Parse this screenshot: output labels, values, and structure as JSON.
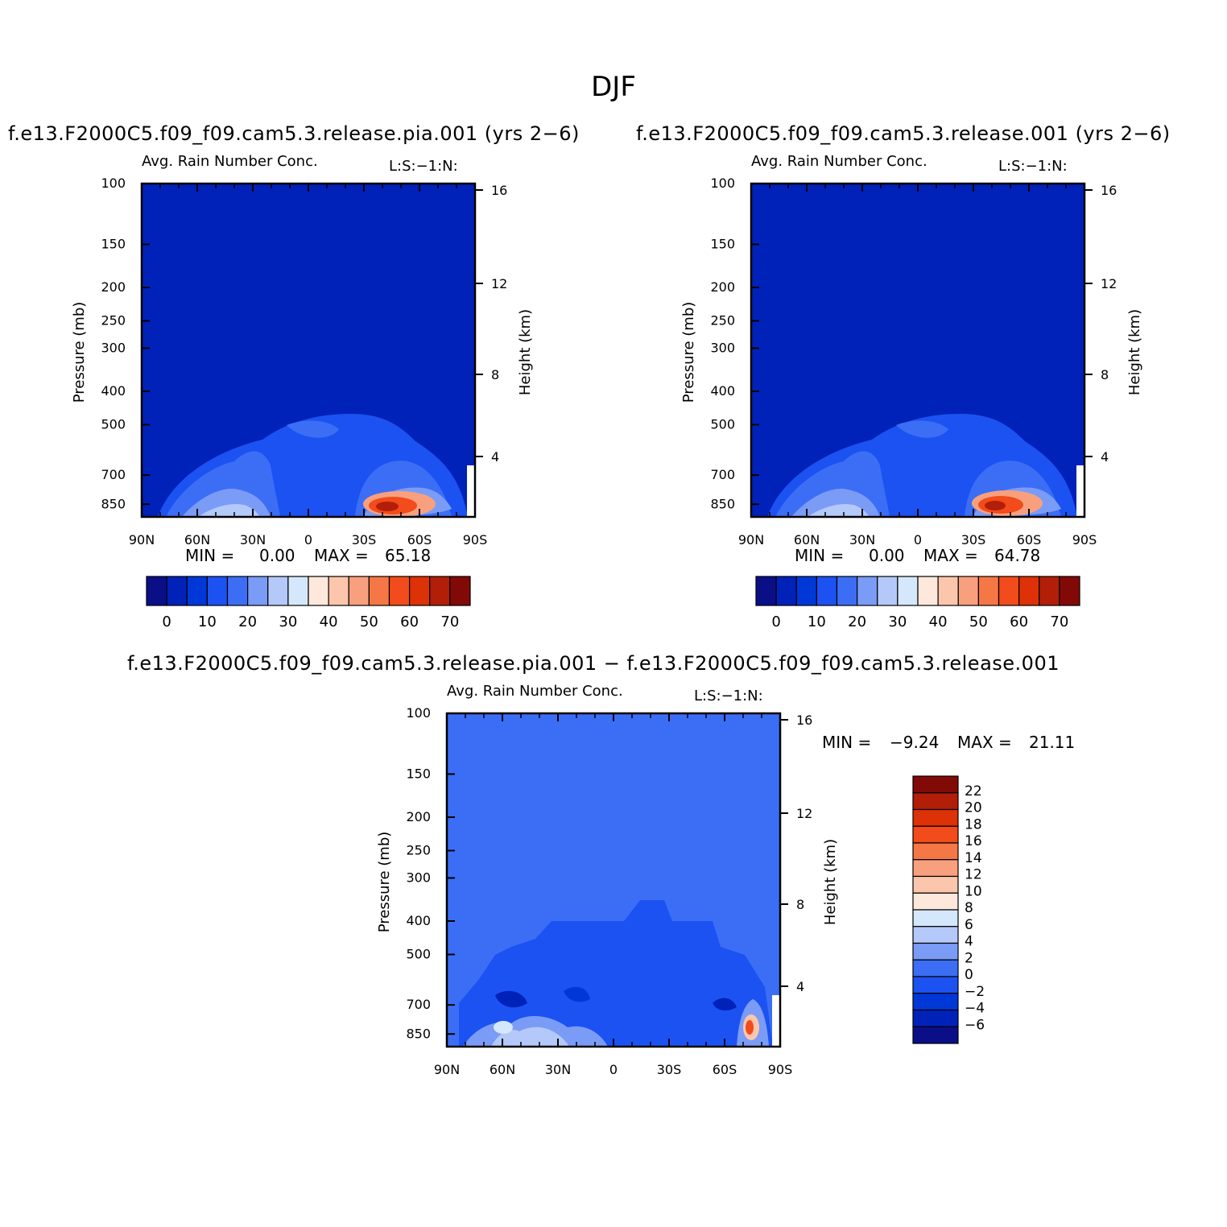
{
  "figure": {
    "title": "DJF"
  },
  "chart_data": [
    {
      "type": "heatmap",
      "case": "f.e13.F2000C5.f09_f09.cam5.3.release.pia.001 (yrs 2−6)",
      "title": "Avg. Rain Number Conc.",
      "subtitle": "L:S:−1:N:",
      "ylabel": "Pressure (mb)",
      "y2label": "Height (km)",
      "x_ticks": [
        "90N",
        "60N",
        "30N",
        "0",
        "30S",
        "60S",
        "90S"
      ],
      "y_ticks": [
        "100",
        "150",
        "200",
        "250",
        "300",
        "400",
        "500",
        "700",
        "850"
      ],
      "y2_ticks": [
        "16",
        "12",
        "8",
        "4"
      ],
      "min_label": "MIN =",
      "min": "0.00",
      "max_label": "MAX =",
      "max": "65.18",
      "colorbar_labels": [
        "0",
        "10",
        "20",
        "30",
        "40",
        "50",
        "60",
        "70"
      ],
      "colors": [
        "#0a0f87",
        "#0022b8",
        "#0038d8",
        "#1c52f2",
        "#3c6ef5",
        "#7a9cf6",
        "#b4c9fa",
        "#d5e8fb",
        "#fde8db",
        "#fbc6ac",
        "#f8a07e",
        "#f57745",
        "#f24b1c",
        "#dd3108",
        "#b21e08",
        "#820a06"
      ]
    },
    {
      "type": "heatmap",
      "case": "f.e13.F2000C5.f09_f09.cam5.3.release.001 (yrs 2−6)",
      "title": "Avg. Rain Number Conc.",
      "subtitle": "L:S:−1:N:",
      "ylabel": "Pressure (mb)",
      "y2label": "Height (km)",
      "x_ticks": [
        "90N",
        "60N",
        "30N",
        "0",
        "30S",
        "60S",
        "90S"
      ],
      "y_ticks": [
        "100",
        "150",
        "200",
        "250",
        "300",
        "400",
        "500",
        "700",
        "850"
      ],
      "y2_ticks": [
        "16",
        "12",
        "8",
        "4"
      ],
      "min_label": "MIN =",
      "min": "0.00",
      "max_label": "MAX =",
      "max": "64.78",
      "colorbar_labels": [
        "0",
        "10",
        "20",
        "30",
        "40",
        "50",
        "60",
        "70"
      ],
      "colors": [
        "#0a0f87",
        "#0022b8",
        "#0038d8",
        "#1c52f2",
        "#3c6ef5",
        "#7a9cf6",
        "#b4c9fa",
        "#d5e8fb",
        "#fde8db",
        "#fbc6ac",
        "#f8a07e",
        "#f57745",
        "#f24b1c",
        "#dd3108",
        "#b21e08",
        "#820a06"
      ]
    },
    {
      "type": "heatmap",
      "case": "f.e13.F2000C5.f09_f09.cam5.3.release.pia.001 − f.e13.F2000C5.f09_f09.cam5.3.release.001",
      "title": "Avg. Rain Number Conc.",
      "subtitle": "L:S:−1:N:",
      "ylabel": "Pressure (mb)",
      "y2label": "Height (km)",
      "x_ticks": [
        "90N",
        "60N",
        "30N",
        "0",
        "30S",
        "60S",
        "90S"
      ],
      "y_ticks": [
        "100",
        "150",
        "200",
        "250",
        "300",
        "400",
        "500",
        "700",
        "850"
      ],
      "y2_ticks": [
        "16",
        "12",
        "8",
        "4"
      ],
      "min_label": "MIN =",
      "min": "−9.24",
      "max_label": "MAX =",
      "max": "21.11",
      "colorbar_labels": [
        "22",
        "20",
        "18",
        "16",
        "14",
        "12",
        "10",
        "8",
        "6",
        "4",
        "2",
        "0",
        "−2",
        "−4",
        "−6"
      ],
      "colors": [
        "#820a06",
        "#b21e08",
        "#dd3108",
        "#f24b1c",
        "#f57745",
        "#f8a07e",
        "#fbc6ac",
        "#fde8db",
        "#d5e8fb",
        "#b4c9fa",
        "#7a9cf6",
        "#3c6ef5",
        "#1c52f2",
        "#0038d8",
        "#0022b8",
        "#0a0f87"
      ]
    }
  ]
}
